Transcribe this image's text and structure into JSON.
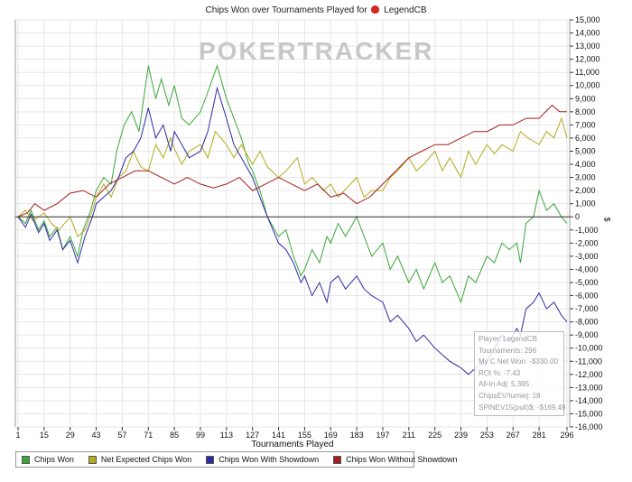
{
  "chart_data": {
    "type": "line",
    "title": "Chips Won over Tournaments Played for",
    "player": "LegendCB",
    "watermark": "POKERTRACKER",
    "xlabel": "Tournaments Played",
    "ylabel": "$",
    "ylim": [
      -16000,
      15000
    ],
    "xlim": [
      1,
      296
    ],
    "x_ticks": [
      1,
      15,
      29,
      43,
      57,
      71,
      85,
      99,
      113,
      127,
      141,
      155,
      169,
      183,
      197,
      211,
      225,
      239,
      253,
      267,
      281,
      296
    ],
    "y_ticks": [
      15000,
      14000,
      13000,
      12000,
      11000,
      10000,
      9000,
      8000,
      7000,
      6000,
      5000,
      4000,
      3000,
      2000,
      1000,
      0,
      -1000,
      -2000,
      -3000,
      -4000,
      -5000,
      -6000,
      -7000,
      -8000,
      -9000,
      -10000,
      -11000,
      -12000,
      -13000,
      -14000,
      -15000,
      -16000
    ],
    "y_tick_labels": [
      "15,000",
      "14,000",
      "13,000",
      "12,000",
      "11,000",
      "10,000",
      "9,000",
      "8,000",
      "7,000",
      "6,000",
      "5,000",
      "4,000",
      "3,000",
      "2,000",
      "1,000",
      "0",
      "-1,000",
      "-2,000",
      "-3,000",
      "-4,000",
      "-5,000",
      "-6,000",
      "-7,000",
      "-8,000",
      "-9,000",
      "-10,000",
      "-11,000",
      "-12,000",
      "-13,000",
      "-14,000",
      "-15,000",
      "-16,000"
    ],
    "grid": true,
    "legend_position": "bottom-left",
    "series": [
      {
        "name": "Chips Won",
        "color": "#3aa63a",
        "points": [
          [
            1,
            0
          ],
          [
            5,
            -500
          ],
          [
            8,
            500
          ],
          [
            12,
            -1000
          ],
          [
            15,
            -300
          ],
          [
            18,
            -1500
          ],
          [
            22,
            -800
          ],
          [
            25,
            -2500
          ],
          [
            29,
            -1500
          ],
          [
            33,
            -3000
          ],
          [
            36,
            -1000
          ],
          [
            40,
            500
          ],
          [
            43,
            2000
          ],
          [
            47,
            3000
          ],
          [
            51,
            2500
          ],
          [
            54,
            5000
          ],
          [
            58,
            7000
          ],
          [
            62,
            8000
          ],
          [
            66,
            6500
          ],
          [
            71,
            11500
          ],
          [
            75,
            9000
          ],
          [
            78,
            10500
          ],
          [
            82,
            8500
          ],
          [
            85,
            10000
          ],
          [
            89,
            7500
          ],
          [
            93,
            7000
          ],
          [
            99,
            8000
          ],
          [
            103,
            9500
          ],
          [
            108,
            11500
          ],
          [
            113,
            9000
          ],
          [
            117,
            7500
          ],
          [
            121,
            6000
          ],
          [
            125,
            4000
          ],
          [
            127,
            3500
          ],
          [
            131,
            2000
          ],
          [
            135,
            0
          ],
          [
            141,
            -1500
          ],
          [
            145,
            -1000
          ],
          [
            149,
            -3000
          ],
          [
            153,
            -4500
          ],
          [
            155,
            -4000
          ],
          [
            159,
            -2500
          ],
          [
            163,
            -3500
          ],
          [
            167,
            -1500
          ],
          [
            169,
            -2000
          ],
          [
            173,
            -500
          ],
          [
            177,
            -1500
          ],
          [
            183,
            0
          ],
          [
            187,
            -1500
          ],
          [
            191,
            -3000
          ],
          [
            197,
            -2000
          ],
          [
            201,
            -4000
          ],
          [
            205,
            -3000
          ],
          [
            211,
            -5000
          ],
          [
            215,
            -4000
          ],
          [
            219,
            -5500
          ],
          [
            225,
            -3500
          ],
          [
            229,
            -5000
          ],
          [
            233,
            -4500
          ],
          [
            239,
            -6500
          ],
          [
            243,
            -4500
          ],
          [
            247,
            -5000
          ],
          [
            253,
            -3000
          ],
          [
            257,
            -3500
          ],
          [
            261,
            -2000
          ],
          [
            265,
            -2500
          ],
          [
            269,
            -2000
          ],
          [
            271,
            -3500
          ],
          [
            274,
            -500
          ],
          [
            278,
            0
          ],
          [
            281,
            2000
          ],
          [
            285,
            500
          ],
          [
            289,
            1000
          ],
          [
            293,
            0
          ],
          [
            296,
            -500
          ]
        ]
      },
      {
        "name": "Net Expected Chips Won",
        "color": "#b5aa1e",
        "points": [
          [
            1,
            0
          ],
          [
            5,
            500
          ],
          [
            9,
            -300
          ],
          [
            15,
            300
          ],
          [
            19,
            -500
          ],
          [
            23,
            -1000
          ],
          [
            29,
            0
          ],
          [
            33,
            -1500
          ],
          [
            37,
            -1000
          ],
          [
            41,
            500
          ],
          [
            43,
            1500
          ],
          [
            47,
            2500
          ],
          [
            51,
            1500
          ],
          [
            55,
            3000
          ],
          [
            59,
            3500
          ],
          [
            63,
            5000
          ],
          [
            67,
            3800
          ],
          [
            71,
            3500
          ],
          [
            75,
            5500
          ],
          [
            79,
            4500
          ],
          [
            83,
            6000
          ],
          [
            85,
            5200
          ],
          [
            89,
            4000
          ],
          [
            93,
            5000
          ],
          [
            99,
            5500
          ],
          [
            103,
            4500
          ],
          [
            107,
            6500
          ],
          [
            113,
            5500
          ],
          [
            117,
            4500
          ],
          [
            121,
            5500
          ],
          [
            127,
            4000
          ],
          [
            131,
            5000
          ],
          [
            135,
            3800
          ],
          [
            141,
            3000
          ],
          [
            145,
            3500
          ],
          [
            151,
            4500
          ],
          [
            155,
            2500
          ],
          [
            159,
            3000
          ],
          [
            165,
            2000
          ],
          [
            169,
            2500
          ],
          [
            173,
            1500
          ],
          [
            183,
            3000
          ],
          [
            187,
            1500
          ],
          [
            191,
            2000
          ],
          [
            197,
            2000
          ],
          [
            201,
            3000
          ],
          [
            205,
            3500
          ],
          [
            211,
            4500
          ],
          [
            215,
            3500
          ],
          [
            219,
            4000
          ],
          [
            225,
            5000
          ],
          [
            229,
            3500
          ],
          [
            233,
            4500
          ],
          [
            239,
            3000
          ],
          [
            243,
            5000
          ],
          [
            247,
            4000
          ],
          [
            253,
            5500
          ],
          [
            257,
            4800
          ],
          [
            261,
            5500
          ],
          [
            267,
            5000
          ],
          [
            271,
            6500
          ],
          [
            275,
            6000
          ],
          [
            281,
            5500
          ],
          [
            285,
            6500
          ],
          [
            289,
            6000
          ],
          [
            293,
            7500
          ],
          [
            296,
            6000
          ]
        ]
      },
      {
        "name": "Chips Won With Showdown",
        "color": "#2b2ba5",
        "points": [
          [
            1,
            0
          ],
          [
            5,
            -800
          ],
          [
            8,
            200
          ],
          [
            12,
            -1200
          ],
          [
            15,
            -500
          ],
          [
            18,
            -1800
          ],
          [
            22,
            -1000
          ],
          [
            25,
            -2500
          ],
          [
            29,
            -1800
          ],
          [
            33,
            -3500
          ],
          [
            37,
            -1500
          ],
          [
            41,
            0
          ],
          [
            43,
            1000
          ],
          [
            47,
            1500
          ],
          [
            51,
            2000
          ],
          [
            55,
            3000
          ],
          [
            59,
            4500
          ],
          [
            63,
            5000
          ],
          [
            67,
            6000
          ],
          [
            71,
            8300
          ],
          [
            75,
            6000
          ],
          [
            79,
            7000
          ],
          [
            83,
            5000
          ],
          [
            85,
            6500
          ],
          [
            89,
            5500
          ],
          [
            93,
            4500
          ],
          [
            99,
            5000
          ],
          [
            103,
            6500
          ],
          [
            108,
            9800
          ],
          [
            113,
            7500
          ],
          [
            117,
            5500
          ],
          [
            121,
            4500
          ],
          [
            127,
            3000
          ],
          [
            131,
            1500
          ],
          [
            135,
            0
          ],
          [
            141,
            -2000
          ],
          [
            145,
            -2500
          ],
          [
            149,
            -3500
          ],
          [
            153,
            -5000
          ],
          [
            155,
            -4500
          ],
          [
            159,
            -6000
          ],
          [
            163,
            -5000
          ],
          [
            167,
            -6500
          ],
          [
            169,
            -5000
          ],
          [
            173,
            -4500
          ],
          [
            177,
            -5500
          ],
          [
            183,
            -4500
          ],
          [
            187,
            -5500
          ],
          [
            191,
            -6000
          ],
          [
            197,
            -6500
          ],
          [
            201,
            -8000
          ],
          [
            205,
            -7500
          ],
          [
            211,
            -8500
          ],
          [
            215,
            -9500
          ],
          [
            219,
            -9000
          ],
          [
            225,
            -10000
          ],
          [
            229,
            -10500
          ],
          [
            233,
            -11000
          ],
          [
            239,
            -11500
          ],
          [
            243,
            -12000
          ],
          [
            247,
            -11500
          ],
          [
            253,
            -11000
          ],
          [
            257,
            -10000
          ],
          [
            261,
            -9000
          ],
          [
            265,
            -9500
          ],
          [
            269,
            -8500
          ],
          [
            271,
            -9000
          ],
          [
            274,
            -7000
          ],
          [
            278,
            -6500
          ],
          [
            281,
            -5800
          ],
          [
            285,
            -7000
          ],
          [
            289,
            -6500
          ],
          [
            293,
            -7500
          ],
          [
            296,
            -8000
          ]
        ]
      },
      {
        "name": "Chips Won Without Showdown",
        "color": "#a31f1f",
        "points": [
          [
            1,
            0
          ],
          [
            6,
            300
          ],
          [
            10,
            1000
          ],
          [
            15,
            500
          ],
          [
            22,
            1000
          ],
          [
            29,
            1800
          ],
          [
            36,
            2000
          ],
          [
            43,
            1500
          ],
          [
            50,
            2500
          ],
          [
            57,
            3000
          ],
          [
            64,
            3500
          ],
          [
            71,
            3500
          ],
          [
            78,
            3000
          ],
          [
            85,
            2500
          ],
          [
            92,
            3000
          ],
          [
            99,
            2500
          ],
          [
            106,
            2200
          ],
          [
            113,
            2500
          ],
          [
            120,
            3000
          ],
          [
            127,
            2000
          ],
          [
            134,
            2500
          ],
          [
            141,
            3000
          ],
          [
            148,
            2500
          ],
          [
            155,
            2000
          ],
          [
            162,
            2500
          ],
          [
            169,
            1500
          ],
          [
            176,
            1800
          ],
          [
            183,
            1000
          ],
          [
            190,
            1500
          ],
          [
            197,
            2500
          ],
          [
            204,
            3500
          ],
          [
            211,
            4500
          ],
          [
            218,
            5000
          ],
          [
            225,
            5500
          ],
          [
            232,
            5500
          ],
          [
            239,
            6000
          ],
          [
            246,
            6500
          ],
          [
            253,
            6500
          ],
          [
            260,
            7000
          ],
          [
            267,
            7000
          ],
          [
            274,
            7500
          ],
          [
            281,
            7500
          ],
          [
            288,
            8500
          ],
          [
            292,
            8000
          ],
          [
            296,
            8000
          ]
        ]
      }
    ],
    "stats_box": [
      "Player: LegendCB",
      "Tournaments: 296",
      "My C Net Won: -$330.00",
      "ROI %: -7.43",
      "All-In Adj: 5,395",
      "ChipsEV/turniej: 18",
      "SPINEV15(pull)$: -$169.49"
    ]
  }
}
